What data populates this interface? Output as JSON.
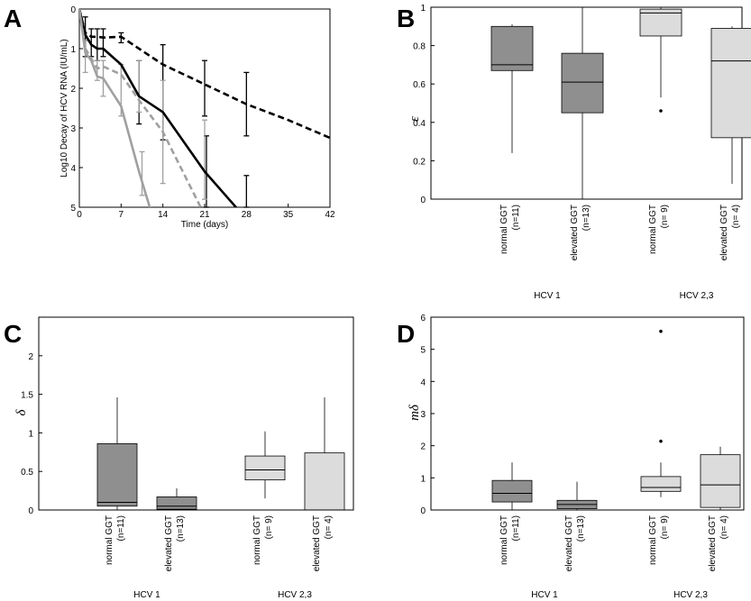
{
  "panels": {
    "A": "A",
    "B": "B",
    "C": "C",
    "D": "D"
  },
  "colors": {
    "black": "#000000",
    "gray_line": "#a0a0a0",
    "box_dark": "#8f8f8f",
    "box_light": "#dcdcdc"
  },
  "chart_data": [
    {
      "panel": "A",
      "type": "line",
      "xlabel": "Time (days)",
      "ylabel": "Log10 Decay of HCV RNA (IU/mL)",
      "xlim": [
        0,
        42
      ],
      "ylim": [
        0,
        5
      ],
      "y_inverted": true,
      "xticks": [
        0,
        7,
        14,
        21,
        28,
        35,
        42
      ],
      "yticks": [
        0,
        1,
        2,
        3,
        4,
        5
      ],
      "series": [
        {
          "color": "#000000",
          "style": "dashed",
          "x": [
            0,
            1,
            2,
            3,
            4,
            7,
            10,
            14,
            21,
            28,
            35,
            42
          ],
          "y": [
            0,
            0.6,
            0.7,
            0.7,
            0.72,
            0.7,
            1.0,
            1.4,
            1.9,
            2.4,
            2.8,
            3.25
          ]
        },
        {
          "color": "#000000",
          "style": "solid",
          "x": [
            0,
            1,
            2,
            3,
            4,
            7,
            10,
            14,
            21,
            28
          ],
          "y": [
            0,
            0.65,
            0.9,
            1.0,
            1.0,
            1.4,
            2.2,
            2.6,
            4.1,
            5.3
          ]
        },
        {
          "color": "#a0a0a0",
          "style": "dashed",
          "x": [
            0,
            1,
            2,
            3,
            4,
            7,
            10,
            14,
            21
          ],
          "y": [
            0,
            1.0,
            1.25,
            1.5,
            1.45,
            1.65,
            2.3,
            3.1,
            5.2
          ]
        },
        {
          "color": "#a0a0a0",
          "style": "solid",
          "x": [
            0,
            1,
            2,
            3,
            4,
            7,
            10,
            12
          ],
          "y": [
            0,
            1.1,
            1.3,
            1.7,
            1.75,
            2.45,
            4.1,
            5.1
          ]
        }
      ],
      "errorbars": [
        {
          "color": "#000000",
          "x": 1,
          "low": 0.2,
          "high": 1.2
        },
        {
          "color": "#000000",
          "x": 2,
          "low": 0.5,
          "high": 1.2
        },
        {
          "color": "#000000",
          "x": 3,
          "low": 0.5,
          "high": 1.3
        },
        {
          "color": "#000000",
          "x": 4,
          "low": 0.5,
          "high": 1.2
        },
        {
          "color": "#000000",
          "x": 7,
          "low": 0.6,
          "high": 0.85
        },
        {
          "color": "#000000",
          "x": 10,
          "low": 1.3,
          "high": 2.9
        },
        {
          "color": "#000000",
          "x": 14,
          "low": 0.9,
          "high": 3.3
        },
        {
          "color": "#000000",
          "x": 21,
          "low": 1.3,
          "high": 2.7
        },
        {
          "color": "#000000",
          "x": 21.3,
          "low": 3.2,
          "high": 5.0
        },
        {
          "color": "#000000",
          "x": 28,
          "low": 1.6,
          "high": 3.2
        },
        {
          "color": "#000000",
          "x": 28,
          "low": 4.2,
          "high": 5.0
        },
        {
          "color": "#a0a0a0",
          "x": 1,
          "low": 0.8,
          "high": 1.6
        },
        {
          "color": "#a0a0a0",
          "x": 3,
          "low": 1.3,
          "high": 1.8
        },
        {
          "color": "#a0a0a0",
          "x": 4,
          "low": 1.3,
          "high": 2.2
        },
        {
          "color": "#a0a0a0",
          "x": 7,
          "low": 1.4,
          "high": 2.7
        },
        {
          "color": "#a0a0a0",
          "x": 10,
          "low": 1.3,
          "high": 2.6
        },
        {
          "color": "#a0a0a0",
          "x": 10.5,
          "low": 3.6,
          "high": 4.7
        },
        {
          "color": "#a0a0a0",
          "x": 14,
          "low": 1.8,
          "high": 4.4
        },
        {
          "color": "#a0a0a0",
          "x": 21,
          "low": 2.8,
          "high": 4.8
        }
      ]
    },
    {
      "panel": "B",
      "type": "box",
      "ylabel": "ε",
      "ylim": [
        0,
        1
      ],
      "yticks": [
        0,
        0.2,
        0.4,
        0.6,
        0.8,
        1
      ],
      "categories": [
        "normal GGT\n(n=11)",
        "elevated GGT\n(n=13)",
        "normal GGT\n(n= 9)",
        "elevated GGT\n(n= 4)"
      ],
      "groups": [
        "HCV 1",
        "HCV 2,3"
      ],
      "boxes": [
        {
          "color": "#8f8f8f",
          "whisker_low": 0.24,
          "q1": 0.67,
          "median": 0.7,
          "q3": 0.9,
          "whisker_high": 0.91,
          "outliers": []
        },
        {
          "color": "#8f8f8f",
          "whisker_low": 0.0,
          "q1": 0.45,
          "median": 0.61,
          "q3": 0.76,
          "whisker_high": 1.0,
          "outliers": []
        },
        {
          "color": "#dcdcdc",
          "whisker_low": 0.53,
          "q1": 0.85,
          "median": 0.97,
          "q3": 0.99,
          "whisker_high": 1.0,
          "outliers": [
            0.46
          ]
        },
        {
          "color": "#dcdcdc",
          "whisker_low": 0.08,
          "q1": 0.32,
          "median": 0.72,
          "q3": 0.89,
          "whisker_high": 0.9,
          "outliers": []
        }
      ]
    },
    {
      "panel": "C",
      "type": "box",
      "ylabel": "δ",
      "ylim": [
        0,
        2.5
      ],
      "yticks": [
        0,
        0.5,
        1,
        1.5,
        2
      ],
      "categories": [
        "normal GGT\n(n=11)",
        "elevated GGT\n(n=13)",
        "normal GGT\n(n= 9)",
        "elevated GGT\n(n= 4)"
      ],
      "groups": [
        "HCV 1",
        "HCV 2,3"
      ],
      "boxes": [
        {
          "color": "#8f8f8f",
          "whisker_low": 0.0,
          "q1": 0.05,
          "median": 0.1,
          "q3": 0.86,
          "whisker_high": 1.46,
          "outliers": []
        },
        {
          "color": "#8f8f8f",
          "whisker_low": 0.0,
          "q1": 0.01,
          "median": 0.05,
          "q3": 0.17,
          "whisker_high": 0.28,
          "outliers": []
        },
        {
          "color": "#dcdcdc",
          "whisker_low": 0.15,
          "q1": 0.39,
          "median": 0.52,
          "q3": 0.7,
          "whisker_high": 1.02,
          "outliers": []
        },
        {
          "color": "#dcdcdc",
          "whisker_low": 0.0,
          "q1": 0.0,
          "median": 0.0,
          "q3": 0.74,
          "whisker_high": 1.46,
          "outliers": []
        }
      ]
    },
    {
      "panel": "D",
      "type": "box",
      "ylabel": "mδ",
      "ylim": [
        0,
        6
      ],
      "yticks": [
        0,
        1,
        2,
        3,
        4,
        5,
        6
      ],
      "categories": [
        "normal GGT\n(n=11)",
        "elevated GGT\n(n=13)",
        "normal GGT\n(n= 9)",
        "elevated GGT\n(n= 4)"
      ],
      "groups": [
        "HCV 1",
        "HCV 2,3"
      ],
      "boxes": [
        {
          "color": "#8f8f8f",
          "whisker_low": 0.0,
          "q1": 0.25,
          "median": 0.52,
          "q3": 0.92,
          "whisker_high": 1.48,
          "outliers": []
        },
        {
          "color": "#8f8f8f",
          "whisker_low": 0.0,
          "q1": 0.04,
          "median": 0.17,
          "q3": 0.3,
          "whisker_high": 0.88,
          "outliers": []
        },
        {
          "color": "#dcdcdc",
          "whisker_low": 0.4,
          "q1": 0.58,
          "median": 0.7,
          "q3": 1.04,
          "whisker_high": 1.48,
          "outliers": [
            2.14,
            5.56
          ]
        },
        {
          "color": "#dcdcdc",
          "whisker_low": 0.0,
          "q1": 0.08,
          "median": 0.78,
          "q3": 1.72,
          "whisker_high": 1.97,
          "outliers": []
        }
      ]
    }
  ]
}
